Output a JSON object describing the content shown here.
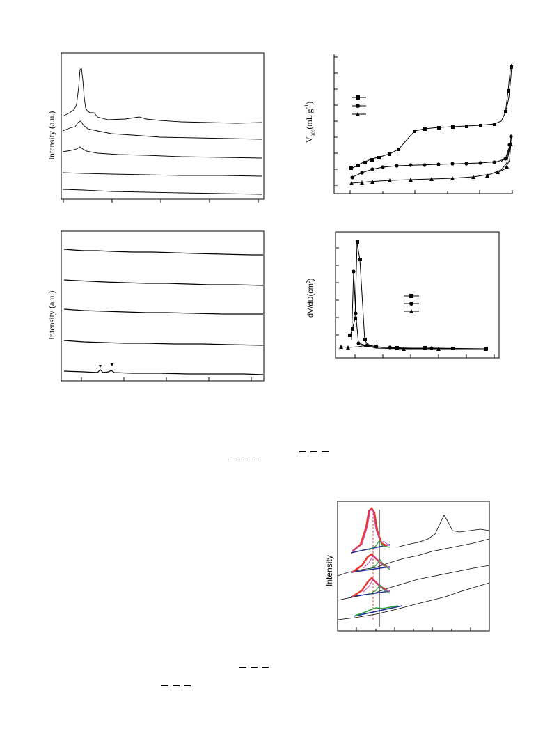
{
  "panels": {
    "xrd_low": {
      "ylabel": "Intensity (a.u.)",
      "chart_data": {
        "type": "line",
        "title": "",
        "xlabel": "",
        "ylabel": "Intensity (a.u.)",
        "series_count": 5,
        "description_of_content": ""
      }
    },
    "isotherm": {
      "ylabel_main": "V",
      "ylabel_sub": "ads",
      "ylabel_rest": "(mL g",
      "ylabel_sup": "-1",
      "ylabel_close": ")",
      "chart_data": {
        "type": "line",
        "title": "",
        "xlabel": "",
        "ylabel": "Vads(mL g-1)"
      }
    },
    "xrd_wide": {
      "ylabel": "Intensity (a.u.)",
      "chart_data": {
        "type": "line",
        "title": "",
        "xlabel": "",
        "ylabel": "Intensity (a.u.)"
      }
    },
    "pore": {
      "ylabel_main": "dV/dD(cm",
      "ylabel_sup": "3",
      "ylabel_close": ")",
      "chart_data": {
        "type": "line",
        "title": "",
        "xlabel": "",
        "ylabel": "dV/dD(cm3)"
      }
    },
    "raman": {
      "ylabel": "Intensity",
      "chart_data": {
        "type": "line",
        "title": "",
        "xlabel": "",
        "ylabel": "Intensity"
      }
    }
  },
  "colors": {
    "axis": "#000000",
    "fit_red": "#e8372c",
    "fit_green": "#2aa33a",
    "fit_magenta": "#c040c0",
    "baseline_blue": "#1f2a9a",
    "ref_dashed": "#e8372c"
  }
}
